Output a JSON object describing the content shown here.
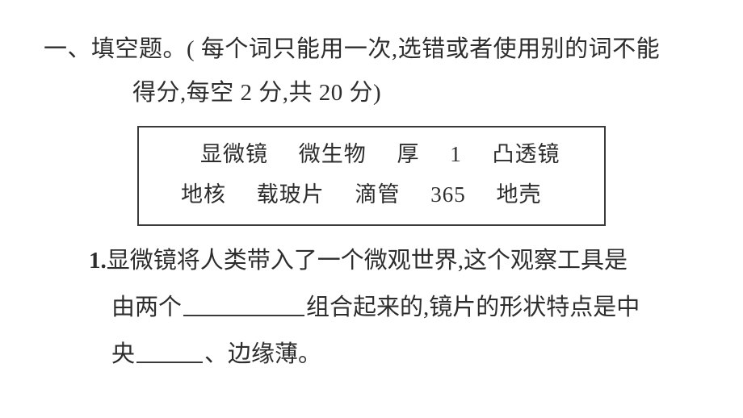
{
  "heading": {
    "line1": "一、填空题。( 每个词只能用一次,选错或者使用别的词不能",
    "line2": "得分,每空 2 分,共 20 分)"
  },
  "wordbox": {
    "row1": [
      "显微镜",
      "微生物",
      "厚",
      "1",
      "凸透镜"
    ],
    "row2": [
      "地核",
      "载玻片",
      "滴管",
      "365",
      "地壳"
    ]
  },
  "question1": {
    "number": "1.",
    "seg1": "显微镜将人类带入了一个微观世界,这个观察工具是",
    "seg2a": "由两个",
    "seg2b": "组合起来的,镜片的形状特点是中",
    "seg3a": "央",
    "seg3b": "、边缘薄。"
  }
}
